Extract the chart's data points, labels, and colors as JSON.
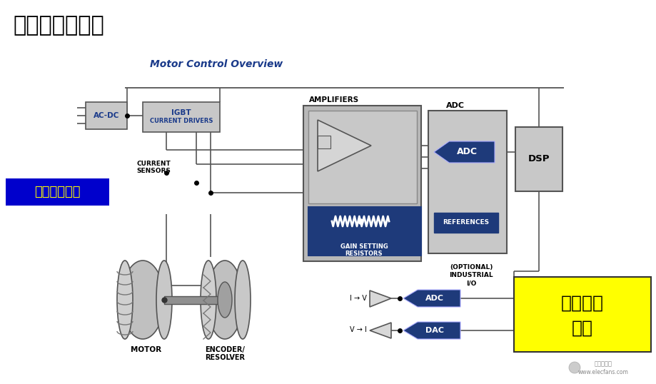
{
  "title": "混合信号的实例",
  "subtitle": "Motor Control Overview",
  "subtitle_color": "#1a3a8a",
  "bg_color": "#ffffff",
  "title_fontsize": 24,
  "subtitle_fontsize": 10,
  "analog_label": "模拟信号测量",
  "analog_bg": "#0000cc",
  "analog_text_color": "#ffff00",
  "digital_label": "数字信号\n测量",
  "digital_bg": "#ffff00",
  "digital_text_color": "#000000",
  "watermark1": "电子发烧友",
  "watermark2": "www.elecfans.com",
  "box_gray": "#c8c8c8",
  "box_blue_dark": "#1a3a8a",
  "line_color": "#555555",
  "text_blue": "#1a3a8a"
}
